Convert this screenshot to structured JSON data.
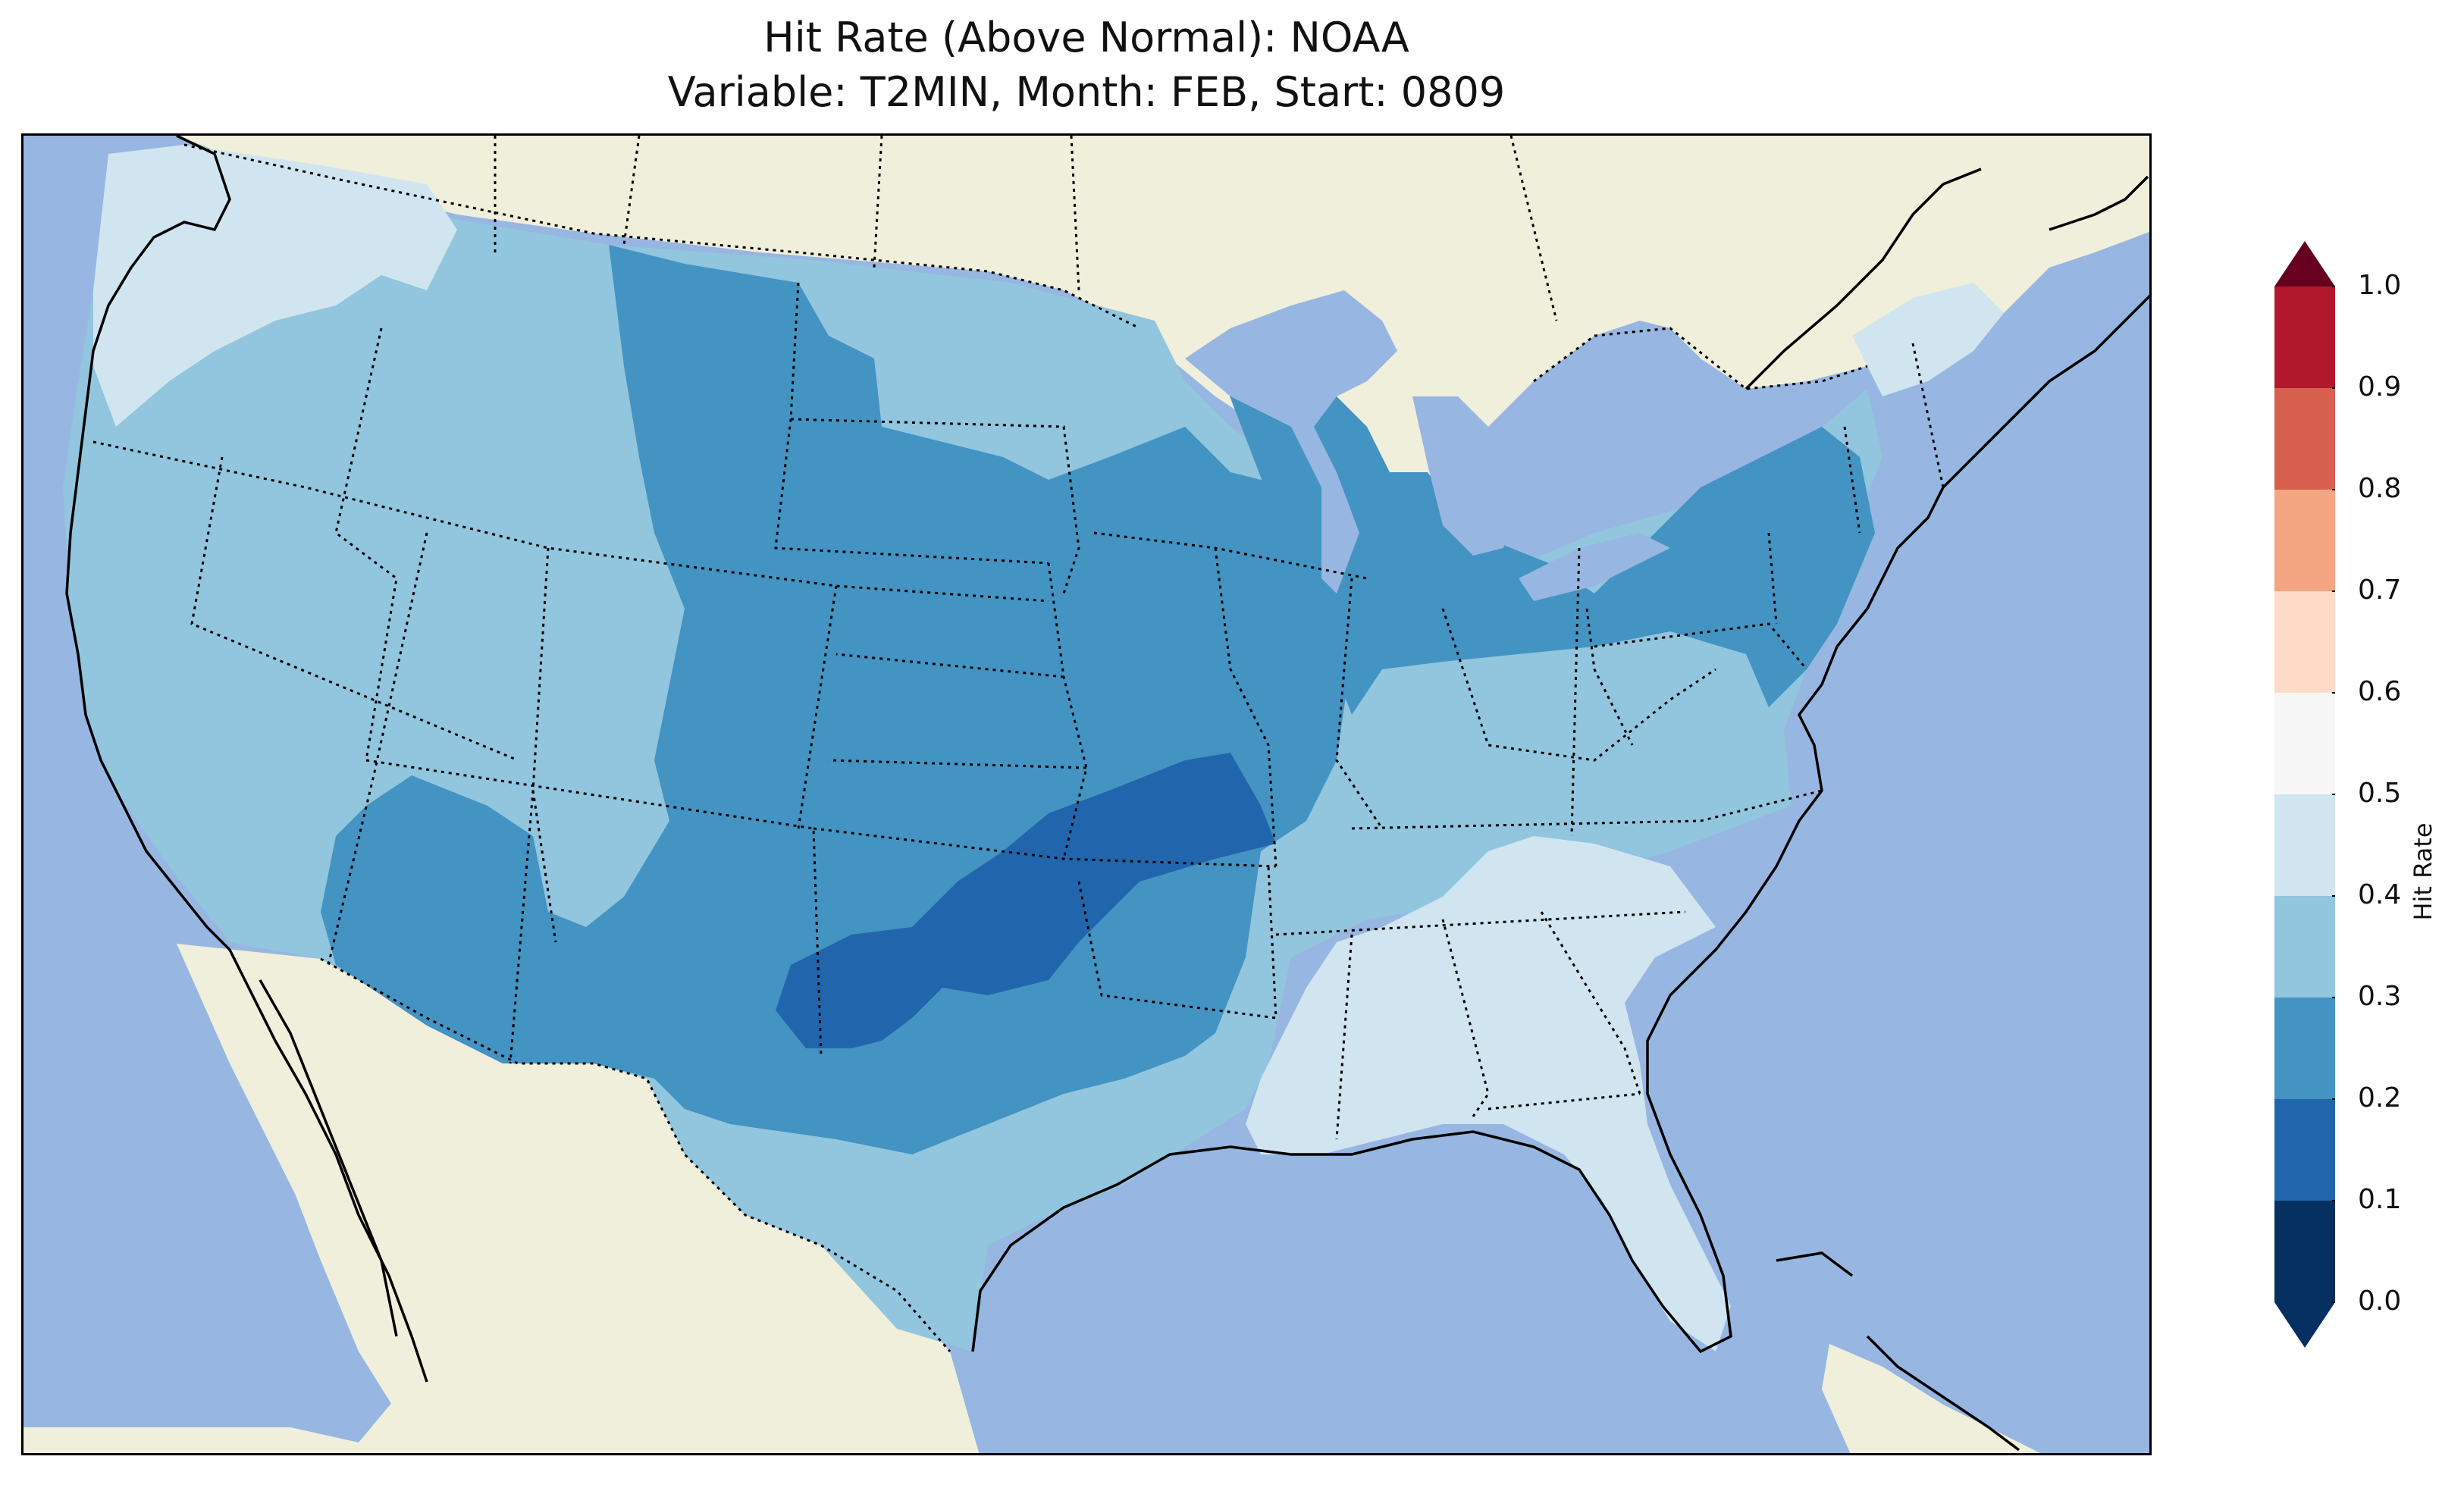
{
  "title": {
    "line1": "Hit Rate (Above Normal): NOAA",
    "line2": "Variable: T2MIN, Month: FEB, Start: 0809"
  },
  "colorbar": {
    "label": "Hit Rate",
    "ticks": [
      "0.0",
      "0.1",
      "0.2",
      "0.3",
      "0.4",
      "0.5",
      "0.6",
      "0.7",
      "0.8",
      "0.9",
      "1.0"
    ],
    "levels": [
      0.0,
      0.1,
      0.2,
      0.3,
      0.4,
      0.5,
      0.6,
      0.7,
      0.8,
      0.9,
      1.0
    ],
    "colors": [
      "#053061",
      "#2166ac",
      "#4393c3",
      "#92c5de",
      "#d1e5f0",
      "#f7f7f7",
      "#fddbc7",
      "#f4a582",
      "#d6604d",
      "#b2182b",
      "#67001f"
    ],
    "extend": "both"
  },
  "map": {
    "region": "Contiguous United States",
    "ocean_color": "#97b6e1",
    "land_color": "#efefdb",
    "regions": [
      {
        "name": "Pacific Northwest coast",
        "bin": "0.4-0.5"
      },
      {
        "name": "Northern Rockies",
        "bin": "0.3-0.4"
      },
      {
        "name": "Great Basin and California",
        "bin": "0.3-0.4"
      },
      {
        "name": "Montana and central plains",
        "bin": "0.2-0.3"
      },
      {
        "name": "Desert Southwest",
        "bin": "0.2-0.3"
      },
      {
        "name": "Oklahoma and north Texas",
        "bin": "0.1-0.2"
      },
      {
        "name": "Missouri and Arkansas",
        "bin": "0.1-0.2"
      },
      {
        "name": "Texas",
        "bin": "0.3-0.4"
      },
      {
        "name": "Midwest",
        "bin": "0.2-0.3"
      },
      {
        "name": "Northeast",
        "bin": "0.2-0.3"
      },
      {
        "name": "Mid-Atlantic and Ohio Valley",
        "bin": "0.3-0.4"
      },
      {
        "name": "Southeast and Florida",
        "bin": "0.4-0.5"
      },
      {
        "name": "Northern New England",
        "bin": "0.4-0.5"
      }
    ]
  }
}
